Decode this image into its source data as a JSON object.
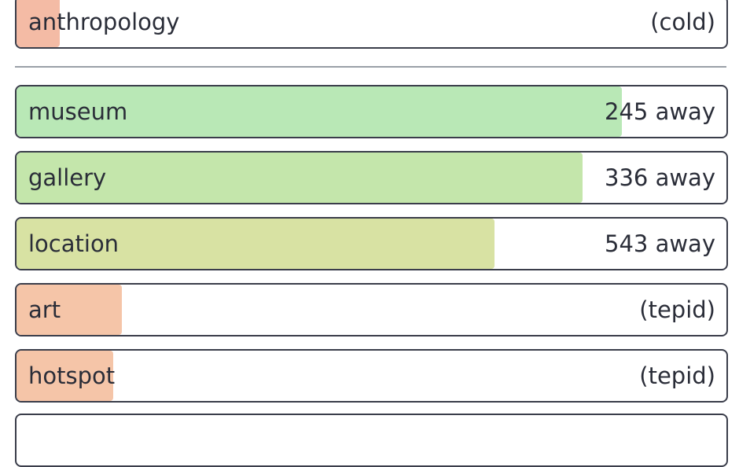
{
  "last_guess": {
    "word": "anthropology",
    "status": "(cold)"
  },
  "guesses": [
    {
      "word": "museum",
      "status": "245 away"
    },
    {
      "word": "gallery",
      "status": "336 away"
    },
    {
      "word": "location",
      "status": "543 away"
    },
    {
      "word": "art",
      "status": "(tepid)"
    },
    {
      "word": "hotspot",
      "status": "(tepid)"
    }
  ]
}
